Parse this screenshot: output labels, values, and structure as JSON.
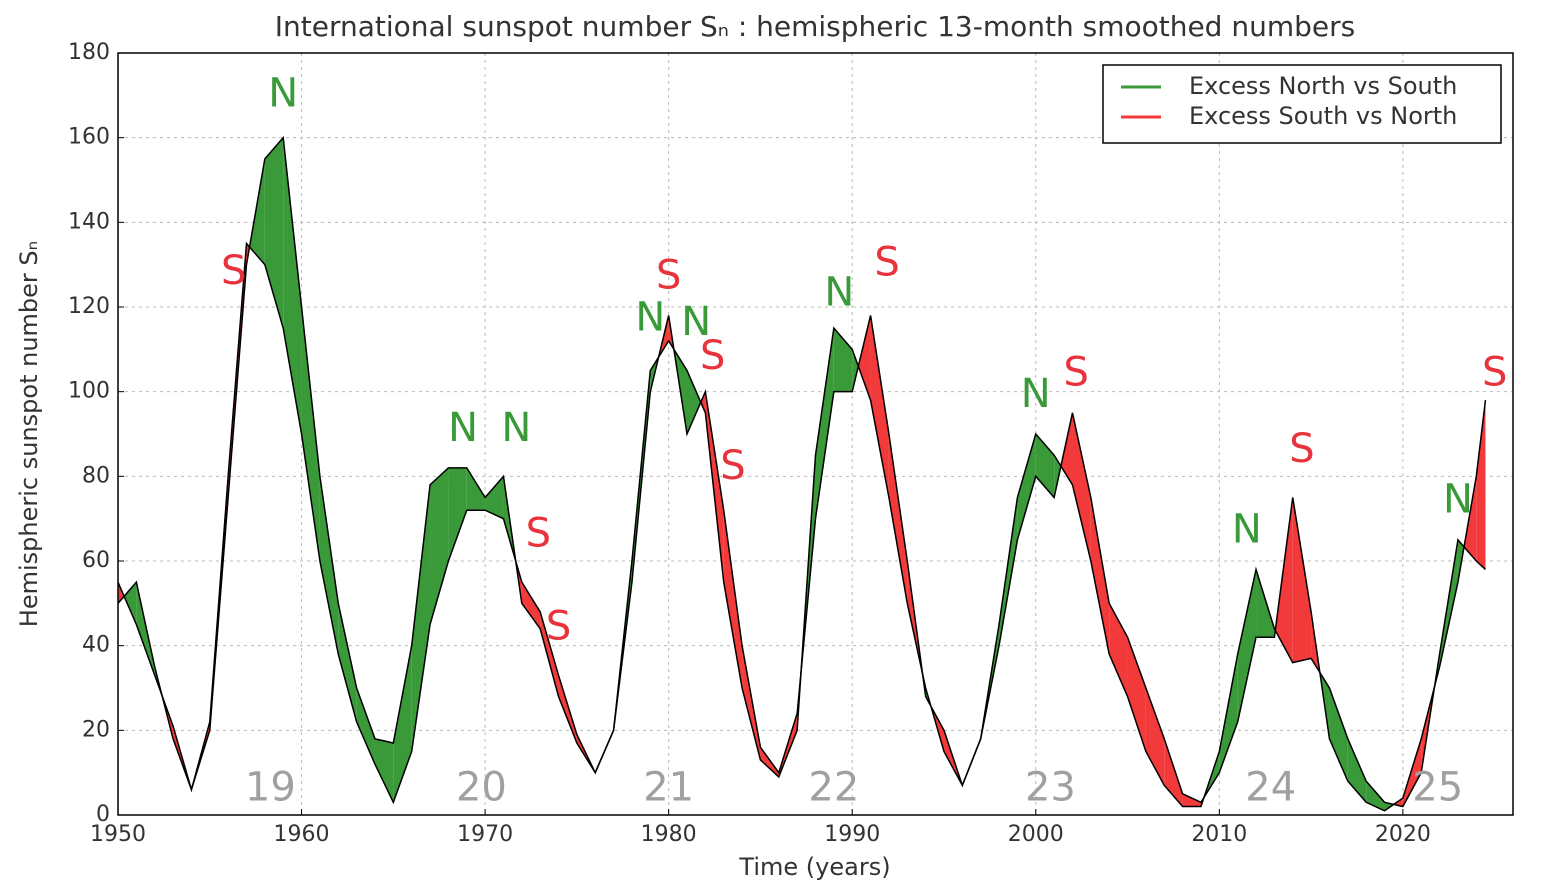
{
  "chart_data": {
    "type": "fill_between",
    "title": "International sunspot number Sₙ : hemispheric 13-month smoothed numbers",
    "x_label": "Time (years)",
    "y_label": "Hemispheric sunspot number Sₙ",
    "xlim": [
      1950,
      2026
    ],
    "ylim": [
      0,
      180
    ],
    "xticks": [
      1950,
      1960,
      1970,
      1980,
      1990,
      2000,
      2010,
      2020
    ],
    "yticks": [
      0,
      20,
      40,
      60,
      80,
      100,
      120,
      140,
      160,
      180
    ],
    "grid": true,
    "legend": "upper right",
    "x": [
      1950,
      1951,
      1952,
      1953,
      1954,
      1955,
      1956,
      1957,
      1958,
      1959,
      1960,
      1961,
      1962,
      1963,
      1964,
      1965,
      1966,
      1967,
      1968,
      1969,
      1970,
      1971,
      1972,
      1973,
      1974,
      1975,
      1976,
      1977,
      1978,
      1979,
      1980,
      1981,
      1982,
      1983,
      1984,
      1985,
      1986,
      1987,
      1988,
      1989,
      1990,
      1991,
      1992,
      1993,
      1994,
      1995,
      1996,
      1997,
      1998,
      1999,
      2000,
      2001,
      2002,
      2003,
      2004,
      2005,
      2006,
      2007,
      2008,
      2009,
      2010,
      2011,
      2012,
      2013,
      2014,
      2015,
      2016,
      2017,
      2018,
      2019,
      2020,
      2021,
      2022,
      2023,
      2024,
      2024.5
    ],
    "series": [
      {
        "name": "Excess North vs South",
        "color": "#3a9a3a",
        "values": [
          50,
          55,
          35,
          18,
          6,
          20,
          75,
          130,
          155,
          160,
          120,
          80,
          50,
          30,
          18,
          17,
          40,
          78,
          82,
          82,
          75,
          80,
          50,
          44,
          28,
          17,
          10,
          20,
          60,
          105,
          112,
          105,
          95,
          55,
          30,
          13,
          9,
          20,
          85,
          115,
          110,
          98,
          75,
          50,
          30,
          15,
          7,
          18,
          45,
          75,
          90,
          85,
          78,
          60,
          38,
          28,
          15,
          7,
          2,
          2,
          15,
          38,
          58,
          44,
          36,
          37,
          30,
          18,
          8,
          3,
          2,
          10,
          38,
          65,
          60,
          58
        ]
      },
      {
        "name": "Excess South vs North",
        "color": "#f23a3a",
        "values": [
          55,
          45,
          33,
          21,
          6,
          22,
          80,
          135,
          130,
          115,
          90,
          60,
          38,
          22,
          12,
          3,
          15,
          45,
          60,
          72,
          72,
          70,
          55,
          48,
          33,
          19,
          10,
          20,
          55,
          100,
          118,
          90,
          100,
          72,
          40,
          16,
          10,
          24,
          70,
          100,
          100,
          118,
          90,
          60,
          28,
          20,
          7,
          18,
          40,
          65,
          80,
          75,
          95,
          75,
          50,
          42,
          30,
          18,
          5,
          3,
          10,
          22,
          42,
          42,
          75,
          48,
          18,
          8,
          3,
          1,
          4,
          18,
          35,
          55,
          80,
          98
        ]
      }
    ],
    "annotations": [
      {
        "text": "S",
        "x": 1956.3,
        "y": 128,
        "color": "#e8323c"
      },
      {
        "text": "N",
        "x": 1959.0,
        "y": 170,
        "color": "#3a9a3a"
      },
      {
        "text": "N",
        "x": 1968.8,
        "y": 91,
        "color": "#3a9a3a"
      },
      {
        "text": "N",
        "x": 1971.7,
        "y": 91,
        "color": "#3a9a3a"
      },
      {
        "text": "S",
        "x": 1972.9,
        "y": 66,
        "color": "#e8323c"
      },
      {
        "text": "S",
        "x": 1974.0,
        "y": 44,
        "color": "#e8323c"
      },
      {
        "text": "N",
        "x": 1979.0,
        "y": 117,
        "color": "#3a9a3a"
      },
      {
        "text": "S",
        "x": 1980.0,
        "y": 127,
        "color": "#e8323c"
      },
      {
        "text": "N",
        "x": 1981.5,
        "y": 116,
        "color": "#3a9a3a"
      },
      {
        "text": "S",
        "x": 1982.4,
        "y": 108,
        "color": "#e8323c"
      },
      {
        "text": "S",
        "x": 1983.5,
        "y": 82,
        "color": "#e8323c"
      },
      {
        "text": "N",
        "x": 1989.3,
        "y": 123,
        "color": "#3a9a3a"
      },
      {
        "text": "S",
        "x": 1991.9,
        "y": 130,
        "color": "#e8323c"
      },
      {
        "text": "N",
        "x": 2000.0,
        "y": 99,
        "color": "#3a9a3a"
      },
      {
        "text": "S",
        "x": 2002.2,
        "y": 104,
        "color": "#e8323c"
      },
      {
        "text": "N",
        "x": 2011.5,
        "y": 67,
        "color": "#3a9a3a"
      },
      {
        "text": "S",
        "x": 2014.5,
        "y": 86,
        "color": "#e8323c"
      },
      {
        "text": "N",
        "x": 2023.0,
        "y": 74,
        "color": "#3a9a3a"
      },
      {
        "text": "S",
        "x": 2025.0,
        "y": 104,
        "color": "#e8323c"
      },
      {
        "text": "19",
        "x": 1958.3,
        "y": 6,
        "color": "#a0a0a0"
      },
      {
        "text": "20",
        "x": 1969.8,
        "y": 6,
        "color": "#a0a0a0"
      },
      {
        "text": "21",
        "x": 1980.0,
        "y": 6,
        "color": "#a0a0a0"
      },
      {
        "text": "22",
        "x": 1989.0,
        "y": 6,
        "color": "#a0a0a0"
      },
      {
        "text": "23",
        "x": 2000.8,
        "y": 6,
        "color": "#a0a0a0"
      },
      {
        "text": "24",
        "x": 2012.8,
        "y": 6,
        "color": "#a0a0a0"
      },
      {
        "text": "25",
        "x": 2021.9,
        "y": 6,
        "color": "#a0a0a0"
      }
    ]
  }
}
